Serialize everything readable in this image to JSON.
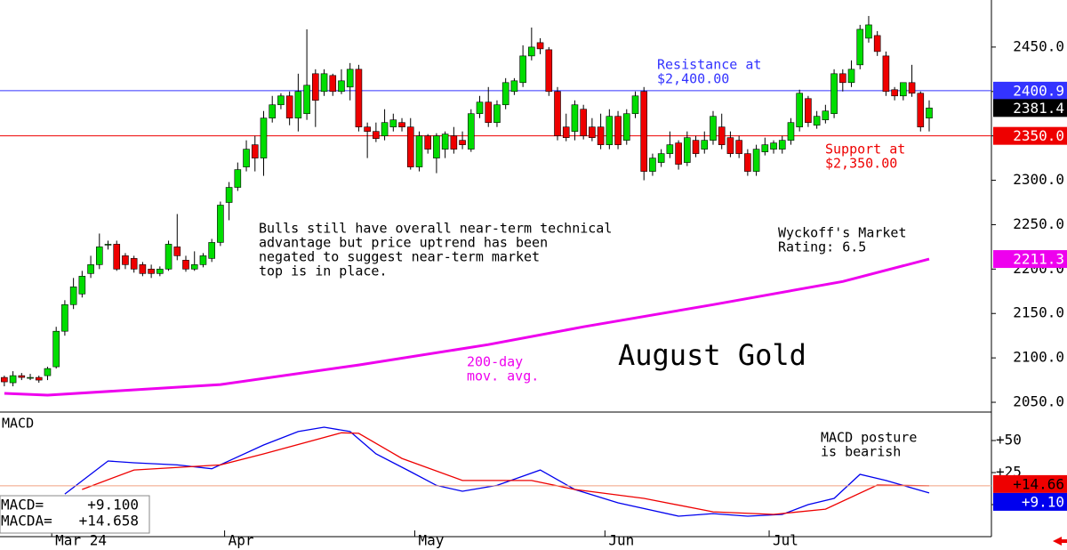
{
  "chart_data": [
    {
      "type": "candlestick",
      "title": "August Gold",
      "xlim": [
        -0.5,
        114.2
      ],
      "ylim": [
        2039,
        2503
      ],
      "xticks": [
        {
          "value": 6,
          "label": "Mar 24"
        },
        {
          "value": 26,
          "label": "Apr"
        },
        {
          "value": 48,
          "label": "May"
        },
        {
          "value": 70,
          "label": "Jun"
        },
        {
          "value": 89,
          "label": "Jul"
        }
      ],
      "yticks": [
        {
          "value": 2050,
          "label": "2050.0"
        },
        {
          "value": 2100,
          "label": "2100.0"
        },
        {
          "value": 2150,
          "label": "2150.0"
        },
        {
          "value": 2200,
          "label": "2200.0"
        },
        {
          "value": 2250,
          "label": "2250.0"
        },
        {
          "value": 2300,
          "label": "2300.0"
        },
        {
          "value": 2350,
          "label": "2350.0"
        },
        {
          "value": 2400,
          "label": "2400.0"
        },
        {
          "value": 2450,
          "label": "2450.0"
        }
      ],
      "up_color": "#00dd00",
      "down_color": "#ee0000",
      "open": [
        2078,
        2072,
        2080,
        2078,
        2078,
        2080,
        2090,
        2130,
        2160,
        2172,
        2195,
        2205,
        2228,
        2228,
        2215,
        2212,
        2205,
        2200,
        2195,
        2200,
        2225,
        2210,
        2200,
        2205,
        2212,
        2230,
        2275,
        2292,
        2315,
        2340,
        2325,
        2370,
        2385,
        2395,
        2370,
        2375,
        2420,
        2400,
        2418,
        2400,
        2405,
        2425,
        2360,
        2355,
        2350,
        2360,
        2365,
        2360,
        2315,
        2350,
        2325,
        2335,
        2350,
        2345,
        2335,
        2375,
        2388,
        2365,
        2385,
        2400,
        2410,
        2440,
        2455,
        2447,
        2400,
        2360,
        2355,
        2380,
        2360,
        2360,
        2340,
        2372,
        2345,
        2375,
        2400,
        2310,
        2320,
        2330,
        2342,
        2320,
        2345,
        2335,
        2345,
        2360,
        2348,
        2345,
        2330,
        2310,
        2332,
        2335,
        2335,
        2345,
        2360,
        2392,
        2362,
        2368,
        2375,
        2420,
        2410,
        2430,
        2460,
        2463,
        2440,
        2402,
        2395,
        2410,
        2398,
        2370
      ],
      "high": [
        2080,
        2085,
        2083,
        2082,
        2080,
        2090,
        2135,
        2165,
        2190,
        2198,
        2215,
        2240,
        2232,
        2232,
        2218,
        2215,
        2208,
        2205,
        2203,
        2232,
        2262,
        2215,
        2220,
        2218,
        2234,
        2276,
        2298,
        2320,
        2345,
        2350,
        2378,
        2395,
        2398,
        2400,
        2420,
        2470,
        2425,
        2425,
        2420,
        2425,
        2432,
        2430,
        2365,
        2365,
        2380,
        2375,
        2370,
        2370,
        2355,
        2352,
        2353,
        2355,
        2360,
        2355,
        2380,
        2395,
        2405,
        2390,
        2415,
        2415,
        2452,
        2472,
        2460,
        2450,
        2405,
        2375,
        2390,
        2385,
        2370,
        2375,
        2380,
        2378,
        2380,
        2400,
        2405,
        2330,
        2335,
        2355,
        2345,
        2355,
        2350,
        2355,
        2378,
        2375,
        2355,
        2350,
        2335,
        2340,
        2348,
        2345,
        2350,
        2370,
        2402,
        2395,
        2378,
        2385,
        2425,
        2425,
        2435,
        2475,
        2485,
        2468,
        2445,
        2405,
        2410,
        2430,
        2400,
        2390
      ],
      "low": [
        2068,
        2068,
        2075,
        2075,
        2072,
        2075,
        2088,
        2125,
        2155,
        2168,
        2190,
        2200,
        2222,
        2198,
        2200,
        2196,
        2192,
        2190,
        2192,
        2198,
        2210,
        2197,
        2198,
        2202,
        2208,
        2226,
        2255,
        2288,
        2310,
        2310,
        2305,
        2365,
        2380,
        2362,
        2355,
        2368,
        2360,
        2395,
        2395,
        2397,
        2390,
        2355,
        2325,
        2343,
        2345,
        2355,
        2355,
        2312,
        2310,
        2330,
        2308,
        2325,
        2330,
        2335,
        2332,
        2370,
        2360,
        2360,
        2380,
        2396,
        2405,
        2435,
        2442,
        2395,
        2345,
        2344,
        2345,
        2346,
        2344,
        2335,
        2335,
        2335,
        2340,
        2370,
        2300,
        2305,
        2315,
        2325,
        2312,
        2316,
        2326,
        2330,
        2340,
        2335,
        2326,
        2325,
        2305,
        2305,
        2328,
        2330,
        2330,
        2340,
        2355,
        2360,
        2358,
        2364,
        2370,
        2400,
        2405,
        2425,
        2455,
        2440,
        2395,
        2390,
        2390,
        2394,
        2355,
        2355
      ],
      "close": [
        2073,
        2080,
        2078,
        2078,
        2075,
        2088,
        2130,
        2160,
        2180,
        2192,
        2205,
        2225,
        2228,
        2200,
        2205,
        2200,
        2195,
        2195,
        2200,
        2228,
        2215,
        2200,
        2205,
        2215,
        2230,
        2272,
        2292,
        2312,
        2335,
        2325,
        2370,
        2385,
        2395,
        2370,
        2400,
        2407,
        2390,
        2420,
        2400,
        2412,
        2425,
        2360,
        2355,
        2347,
        2365,
        2368,
        2360,
        2315,
        2350,
        2335,
        2350,
        2352,
        2335,
        2340,
        2375,
        2388,
        2365,
        2385,
        2410,
        2412,
        2440,
        2450,
        2448,
        2400,
        2350,
        2348,
        2385,
        2350,
        2348,
        2340,
        2372,
        2340,
        2375,
        2395,
        2310,
        2325,
        2330,
        2340,
        2318,
        2348,
        2330,
        2345,
        2372,
        2340,
        2330,
        2330,
        2310,
        2335,
        2340,
        2342,
        2345,
        2365,
        2398,
        2365,
        2372,
        2378,
        2420,
        2410,
        2425,
        2470,
        2475,
        2445,
        2400,
        2395,
        2410,
        2398,
        2360,
        2381.4
      ],
      "last_label": "2381.4",
      "lines": [
        {
          "value": 2400.9,
          "value_label": "2400.9",
          "color": "#3333ff",
          "note": [
            "Resistance at",
            "$2,400.00"
          ]
        },
        {
          "value": 2350,
          "value_label": "2350.0",
          "color": "#ee0000",
          "note": [
            "Support at",
            "$2,350.00"
          ]
        }
      ],
      "ma": {
        "color": "#ee00ee",
        "label": [
          "200-day",
          "mov. avg."
        ],
        "x": [
          0,
          5,
          25,
          41,
          56,
          67,
          82,
          97,
          107
        ],
        "values": [
          2060,
          2058,
          2070,
          2092,
          2115,
          2135,
          2160,
          2186,
          2211.3
        ],
        "value_label": "2211.3"
      },
      "annotations": [
        [
          "Bulls still have overall near-term technical",
          "advantage but price uptrend has been",
          "negated to suggest near-term market",
          "top is in place."
        ],
        [
          "Wyckoff's Market",
          "Rating: 6.5"
        ]
      ]
    },
    {
      "type": "line",
      "title": "MACD",
      "ylim": [
        -22.9,
        72.2
      ],
      "yticks": [
        0,
        {
          "value": 25,
          "label": "+25"
        },
        {
          "value": 50,
          "label": "+50"
        }
      ],
      "series": [
        {
          "name": "MACD=",
          "color": "#0000ee",
          "readout": "+9.100",
          "value_label": "+9.10",
          "x": [
            7,
            12,
            15,
            20,
            24,
            30,
            34,
            37,
            40,
            43,
            47,
            50,
            53,
            57,
            62,
            66,
            71,
            78,
            82,
            86,
            90,
            93,
            96,
            99,
            102,
            107
          ],
          "values": [
            8.3,
            34,
            32.6,
            31,
            28,
            46.5,
            57,
            60.4,
            57,
            39.6,
            25.7,
            15,
            10.4,
            15,
            27,
            11.8,
            1.4,
            -9,
            -7,
            -9,
            -7.6,
            0,
            4.9,
            23.6,
            18.8,
            9.1
          ]
        },
        {
          "name": "MACDA=",
          "color": "#ee0000",
          "readout": "+14.658",
          "value_label": "+14.66",
          "x": [
            9,
            15,
            25,
            30,
            39,
            41,
            46,
            53,
            61,
            66,
            74,
            82,
            89,
            95,
            101,
            107
          ],
          "values": [
            11.8,
            27,
            31,
            39.6,
            56,
            55.6,
            36,
            18.8,
            18.8,
            11.8,
            4.9,
            -5.6,
            -7.6,
            -3.5,
            15.3,
            14.658
          ]
        }
      ],
      "annotations": [
        [
          "MACD posture",
          "is bearish"
        ]
      ]
    }
  ]
}
